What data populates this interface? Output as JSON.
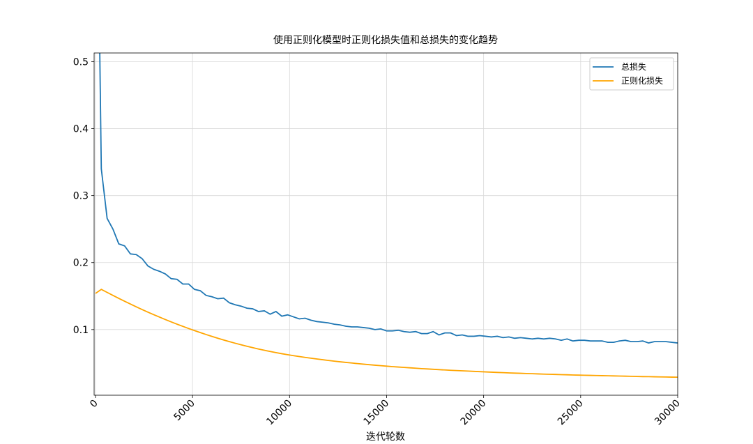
{
  "chart_data": {
    "type": "line",
    "title": "使用正则化模型时正则化损失值和总损失的变化趋势",
    "x_label": "迭代轮数",
    "x": [
      0,
      300,
      600,
      900,
      1200,
      1500,
      1800,
      2100,
      2400,
      2700,
      3000,
      3300,
      3600,
      3900,
      4200,
      4500,
      4800,
      5100,
      5400,
      5700,
      6000,
      6300,
      6600,
      6900,
      7200,
      7500,
      7800,
      8100,
      8400,
      8700,
      9000,
      9300,
      9600,
      9900,
      10200,
      10500,
      10800,
      11100,
      11400,
      11700,
      12000,
      12300,
      12600,
      12900,
      13200,
      13500,
      13800,
      14100,
      14400,
      14700,
      15000,
      15300,
      15600,
      15900,
      16200,
      16500,
      16800,
      17100,
      17400,
      17700,
      18000,
      18300,
      18600,
      18900,
      19200,
      19500,
      19800,
      20100,
      20400,
      20700,
      21000,
      21300,
      21600,
      21900,
      22200,
      22500,
      22800,
      23100,
      23400,
      23700,
      24000,
      24300,
      24600,
      24900,
      25200,
      25500,
      25800,
      26100,
      26400,
      26700,
      27000,
      27300,
      27600,
      27900,
      28200,
      28500,
      28800,
      29100,
      29400,
      29700,
      30000
    ],
    "series": [
      {
        "name": "总损失",
        "color": "#1f77b4",
        "values": [
          1.0,
          0.34,
          0.266,
          0.25,
          0.228,
          0.225,
          0.213,
          0.212,
          0.206,
          0.195,
          0.19,
          0.187,
          0.183,
          0.176,
          0.175,
          0.168,
          0.168,
          0.16,
          0.158,
          0.151,
          0.149,
          0.146,
          0.147,
          0.14,
          0.137,
          0.135,
          0.132,
          0.131,
          0.127,
          0.128,
          0.123,
          0.127,
          0.12,
          0.122,
          0.119,
          0.116,
          0.117,
          0.114,
          0.112,
          0.111,
          0.11,
          0.108,
          0.107,
          0.105,
          0.104,
          0.104,
          0.103,
          0.102,
          0.1,
          0.101,
          0.098,
          0.098,
          0.099,
          0.097,
          0.096,
          0.097,
          0.094,
          0.094,
          0.097,
          0.092,
          0.095,
          0.095,
          0.091,
          0.092,
          0.09,
          0.09,
          0.091,
          0.09,
          0.089,
          0.09,
          0.088,
          0.089,
          0.087,
          0.088,
          0.087,
          0.086,
          0.087,
          0.086,
          0.087,
          0.086,
          0.084,
          0.086,
          0.083,
          0.084,
          0.084,
          0.083,
          0.083,
          0.083,
          0.081,
          0.081,
          0.083,
          0.084,
          0.082,
          0.082,
          0.083,
          0.08,
          0.082,
          0.082,
          0.082,
          0.081,
          0.08
        ]
      },
      {
        "name": "正则化损失",
        "color": "#ffa500",
        "values": [
          0.154,
          0.16,
          0.1555,
          0.151,
          0.1466,
          0.1423,
          0.1381,
          0.134,
          0.13,
          0.1261,
          0.1223,
          0.1186,
          0.115,
          0.1115,
          0.1081,
          0.1048,
          0.1016,
          0.0985,
          0.0955,
          0.0926,
          0.0898,
          0.0871,
          0.0845,
          0.082,
          0.0796,
          0.0773,
          0.0751,
          0.073,
          0.071,
          0.0691,
          0.0673,
          0.0656,
          0.064,
          0.0625,
          0.0611,
          0.0598,
          0.0585,
          0.0573,
          0.0561,
          0.055,
          0.0539,
          0.0529,
          0.0519,
          0.051,
          0.0501,
          0.0492,
          0.0484,
          0.0476,
          0.0468,
          0.0461,
          0.0454,
          0.0447,
          0.0441,
          0.0435,
          0.0429,
          0.0423,
          0.0417,
          0.0412,
          0.0407,
          0.0402,
          0.0397,
          0.0392,
          0.0388,
          0.0384,
          0.038,
          0.0376,
          0.0372,
          0.0368,
          0.0364,
          0.036,
          0.0357,
          0.0353,
          0.035,
          0.0347,
          0.0344,
          0.0341,
          0.0338,
          0.0335,
          0.0332,
          0.033,
          0.0327,
          0.0325,
          0.0322,
          0.032,
          0.0318,
          0.0316,
          0.0314,
          0.0312,
          0.031,
          0.0308,
          0.0306,
          0.0304,
          0.0302,
          0.03,
          0.0298,
          0.0297,
          0.0295,
          0.0293,
          0.0292,
          0.029,
          0.0289
        ]
      }
    ],
    "xlim": [
      -70,
      30000
    ],
    "ylim": [
      0.002,
      0.513
    ],
    "xticks": [
      0,
      5000,
      10000,
      15000,
      20000,
      25000,
      30000
    ],
    "yticks": [
      0.1,
      0.2,
      0.3,
      0.4,
      0.5
    ],
    "grid": true,
    "legend": "upper right"
  }
}
